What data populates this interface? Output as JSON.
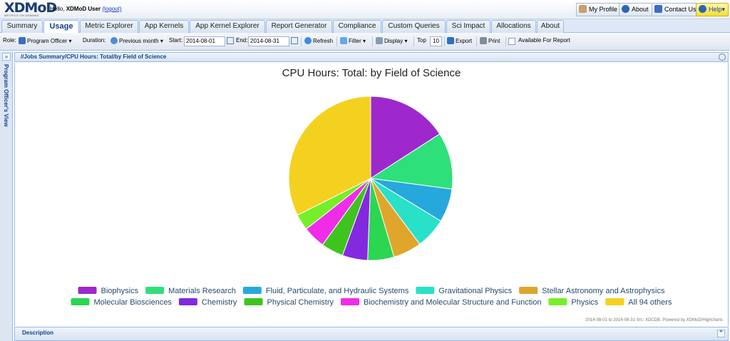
{
  "header": {
    "logo_text": "XDMoD",
    "logo_sub": "METRICS ON DEMAND",
    "greeting": "Hello,",
    "user_name": "XDMoD User",
    "logout_label": "(logout)",
    "buttons": {
      "my_profile": "My Profile",
      "about": "About",
      "contact_us": "Contact Us",
      "help": "Help"
    }
  },
  "tabs": [
    "Summary",
    "Usage",
    "Metric Explorer",
    "App Kernels",
    "App Kernel Explorer",
    "Report Generator",
    "Compliance",
    "Custom Queries",
    "Sci Impact",
    "Allocations",
    "About"
  ],
  "active_tab": "Usage",
  "toolbar": {
    "role_label": "Role:",
    "role_value": "Program Officer",
    "duration_label": "Duration:",
    "duration_value": "Previous month",
    "start_label": "Start:",
    "start_value": "2014-08-01",
    "end_label": "End:",
    "end_value": "2014-08-31",
    "refresh_label": "Refresh",
    "filter_label": "Filter",
    "display_label": "Display",
    "top_label": "Top",
    "top_value": "10",
    "export_label": "Export",
    "print_label": "Print",
    "available_label": "Available For Report"
  },
  "sidebar": {
    "title": "Program Officer's View"
  },
  "panel": {
    "breadcrumb": "//Jobs Summary/CPU Hours: Total/by Field of Science"
  },
  "chart_data": {
    "type": "pie",
    "title": "CPU Hours: Total: by Field of Science",
    "unit": "%",
    "slices": [
      {
        "label": "Biophysics",
        "value": 15.9,
        "color": "#9e28cc"
      },
      {
        "label": "Materials Research",
        "value": 11.2,
        "color": "#2ee07a"
      },
      {
        "label": "Fluid, Particulate, and Hydraulic Systems",
        "value": 6.6,
        "color": "#27a8dc"
      },
      {
        "label": "Gravitational Physics",
        "value": 6.1,
        "color": "#29e0c9"
      },
      {
        "label": "Stellar Astronomy and Astrophysics",
        "value": 5.6,
        "color": "#dfa62b"
      },
      {
        "label": "Molecular Biosciences",
        "value": 5.2,
        "color": "#2cd650"
      },
      {
        "label": "Chemistry",
        "value": 5.0,
        "color": "#8429e0"
      },
      {
        "label": "Physical Chemistry",
        "value": 4.4,
        "color": "#3fc41f"
      },
      {
        "label": "Biochemistry and Molecular Structure and Function",
        "value": 4.4,
        "color": "#f02ce8"
      },
      {
        "label": "Physics",
        "value": 3.2,
        "color": "#76ef2a"
      },
      {
        "label": "All 94 others",
        "value": 32.4,
        "color": "#f5d11f"
      }
    ],
    "legend_placement": "bottom",
    "credits": "2014-08-01 to 2014-08-31 Src: XDCDB. Powered by XDMoD/Highcharts"
  },
  "description_header": "Description"
}
